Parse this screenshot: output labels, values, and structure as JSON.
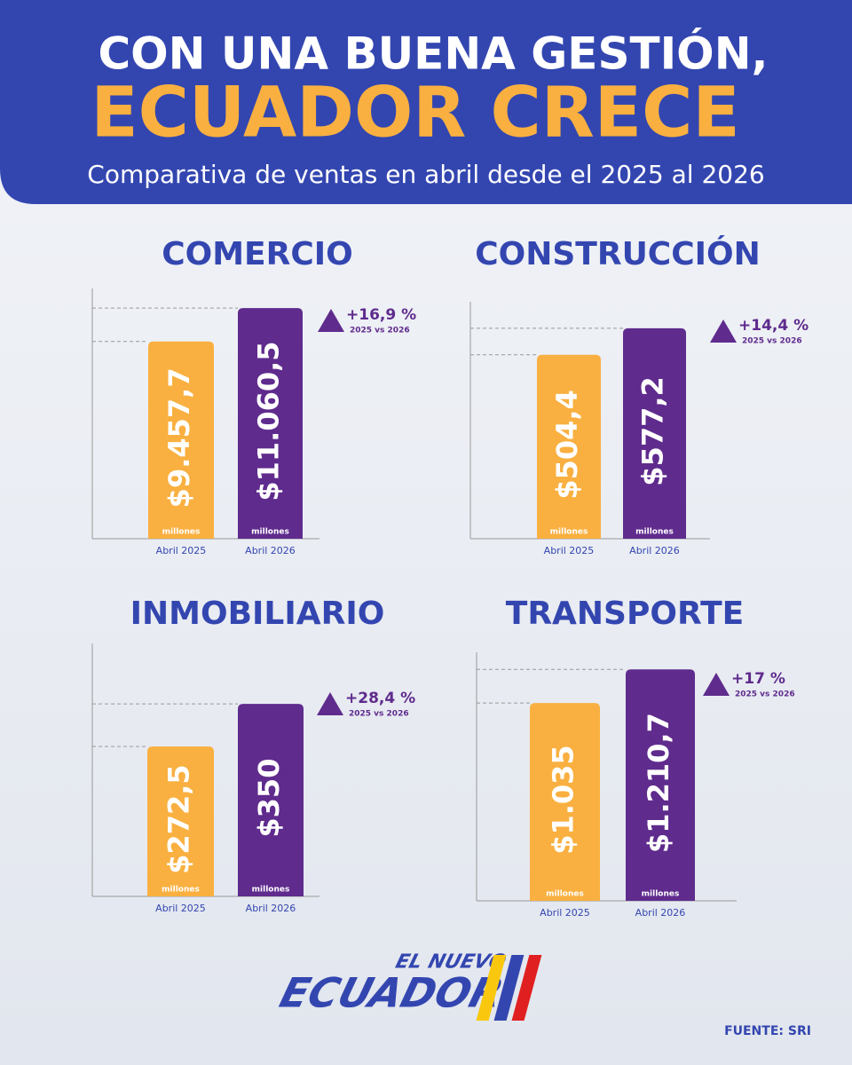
{
  "header": {
    "line1": "CON UNA BUENA GESTIÓN,",
    "line2": "ECUADOR CRECE",
    "subtitle": "Comparativa de ventas en abril desde el 2025 al 2026"
  },
  "chart_data": [
    {
      "type": "bar",
      "title": "COMERCIO",
      "categories": [
        "Abril 2025",
        "Abril 2026"
      ],
      "values": [
        9457.7,
        11060.5
      ],
      "value_labels": [
        "$9.457,7",
        "$11.060,5"
      ],
      "unit": "millones",
      "colors": [
        "#f9b040",
        "#5f2b8d"
      ],
      "ylim": [
        0,
        12000
      ],
      "annotation": "+16,9 %",
      "annotation_note": "2025 vs 2026"
    },
    {
      "type": "bar",
      "title": "CONSTRUCCIÓN",
      "categories": [
        "Abril 2025",
        "Abril 2026"
      ],
      "values": [
        504.4,
        577.2
      ],
      "value_labels": [
        "$504,4",
        "$577,2"
      ],
      "unit": "millones",
      "colors": [
        "#f9b040",
        "#5f2b8d"
      ],
      "ylim": [
        0,
        650
      ],
      "annotation": "+14,4 %",
      "annotation_note": "2025 vs 2026"
    },
    {
      "type": "bar",
      "title": "INMOBILIARIO",
      "categories": [
        "Abril 2025",
        "Abril 2026"
      ],
      "values": [
        272.5,
        350
      ],
      "value_labels": [
        "$272,5",
        "$350"
      ],
      "unit": "millones",
      "colors": [
        "#f9b040",
        "#5f2b8d"
      ],
      "ylim": [
        0,
        460
      ],
      "annotation": "+28,4 %",
      "annotation_note": "2025 vs 2026"
    },
    {
      "type": "bar",
      "title": "TRANSPORTE",
      "categories": [
        "Abril 2025",
        "Abril 2026"
      ],
      "values": [
        1035,
        1210.7
      ],
      "value_labels": [
        "$1.035",
        "$1.210,7"
      ],
      "unit": "millones",
      "colors": [
        "#f9b040",
        "#5f2b8d"
      ],
      "ylim": [
        0,
        1300
      ],
      "annotation": "+17 %",
      "annotation_note": "2025 vs 2026"
    }
  ],
  "footer": {
    "logo_line1": "EL NUEVO",
    "logo_line2": "ECUADOR",
    "source": "FUENTE: SRI"
  }
}
